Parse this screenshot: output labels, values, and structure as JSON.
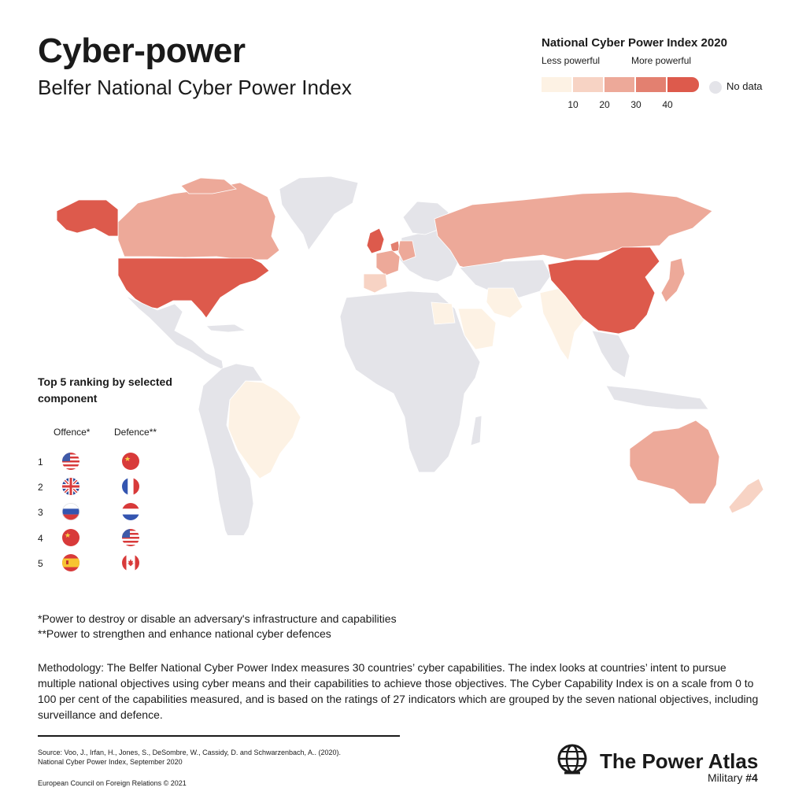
{
  "header": {
    "title": "Cyber-power",
    "subtitle": "Belfer National Cyber Power Index"
  },
  "legend": {
    "title": "National Cyber Power Index 2020",
    "low_label": "Less powerful",
    "high_label": "More powerful",
    "ticks": [
      "10",
      "20",
      "30",
      "40"
    ],
    "no_data_label": "No data",
    "colors": {
      "bin1": "#fdf2e4",
      "bin2": "#f7d3c4",
      "bin3": "#eda999",
      "bin4": "#e38070",
      "bin5": "#dd5a4c",
      "no_data": "#e4e4e9"
    }
  },
  "ranking": {
    "title": "Top 5 ranking by selected component",
    "offence_label": "Offence*",
    "defence_label": "Defence**",
    "ranks": [
      "1",
      "2",
      "3",
      "4",
      "5"
    ],
    "offence_flags": [
      "united-states",
      "united-kingdom",
      "russia",
      "china",
      "spain"
    ],
    "defence_flags": [
      "china",
      "france",
      "netherlands",
      "united-states",
      "canada"
    ]
  },
  "footnotes": {
    "offence": "*Power to destroy or disable an adversary's infrastructure and capabilities",
    "defence": "**Power to strengthen and enhance national cyber defences"
  },
  "methodology": "Methodology: The Belfer National Cyber Power Index measures 30 countries’ cyber capabilities. The index looks at countries’ intent to pursue multiple national objectives using cyber means and their capabilities to achieve those objectives. The Cyber Capability Index is on a scale from 0 to 100 per cent of the capabilities measured, and is based on the ratings of 27 indicators which are grouped by the seven national objectives, including surveillance and defence.",
  "source": {
    "line1": "Source: Voo, J., Irfan, H., Jones, S., DeSombre, W., Cassidy, D. and Schwarzenbach, A.. (2020).",
    "line2": "National Cyber Power Index, September 2020",
    "copyright": "European Council on Foreign Relations © 2021"
  },
  "brand": {
    "name": "The Power Atlas",
    "series_prefix": "Military ",
    "series_number": "#4",
    "logo_icon": "globe-icon"
  },
  "map": {
    "regions": [
      {
        "name": "united-states",
        "bin": 5
      },
      {
        "name": "china",
        "bin": 5
      },
      {
        "name": "united-kingdom",
        "bin": 5
      },
      {
        "name": "russia",
        "bin": 3
      },
      {
        "name": "canada",
        "bin": 3
      },
      {
        "name": "australia",
        "bin": 3
      },
      {
        "name": "netherlands",
        "bin": 4
      },
      {
        "name": "france",
        "bin": 3
      },
      {
        "name": "germany",
        "bin": 3
      },
      {
        "name": "japan",
        "bin": 3
      },
      {
        "name": "spain",
        "bin": 2
      },
      {
        "name": "brazil",
        "bin": 1
      },
      {
        "name": "india",
        "bin": 1
      },
      {
        "name": "saudi-arabia",
        "bin": 1
      },
      {
        "name": "iran",
        "bin": 1
      },
      {
        "name": "egypt",
        "bin": 1
      },
      {
        "name": "new-zealand",
        "bin": 2
      }
    ]
  }
}
